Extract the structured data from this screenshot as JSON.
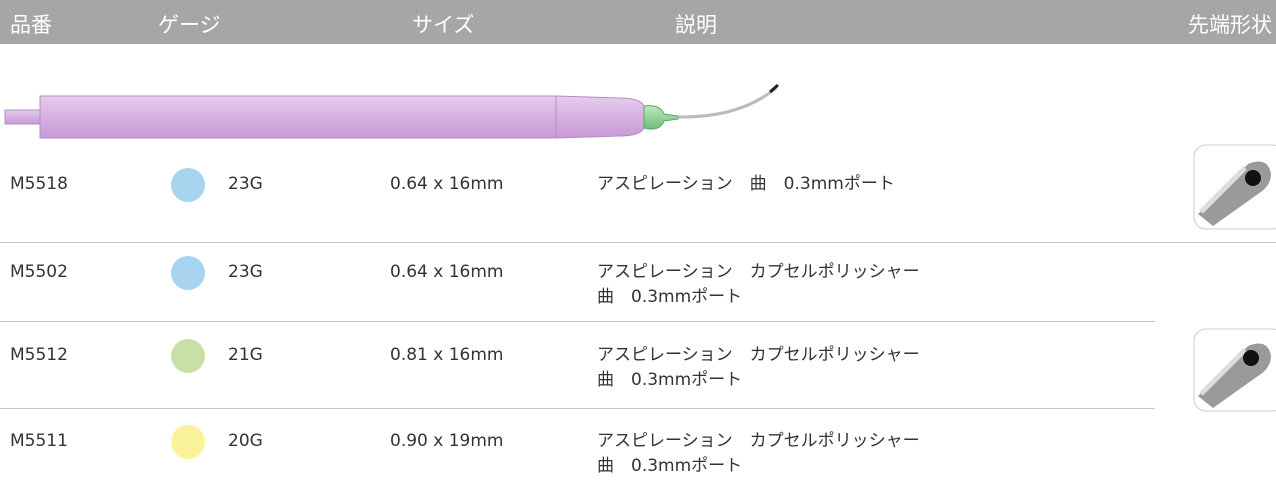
{
  "header": {
    "columns": [
      "品番",
      "ゲージ",
      "サイズ",
      "説明",
      "先端形状"
    ]
  },
  "table": {
    "rows": [
      {
        "code": "M5518",
        "gauge": "23G",
        "dot_color": "#a9d4f0",
        "size": "0.64 x 16mm",
        "description": [
          "アスピレーション　曲　0.3mmポート"
        ]
      },
      {
        "code": "M5502",
        "gauge": "23G",
        "dot_color": "#a9d4f0",
        "size": "0.64 x 16mm",
        "description": [
          "アスピレーション　カプセルポリッシャー",
          "曲　0.3mmポート"
        ]
      },
      {
        "code": "M5512",
        "gauge": "21G",
        "dot_color": "#c8e0a8",
        "size": "0.81 x 16mm",
        "description": [
          "アスピレーション　カプセルポリッシャー",
          "曲　0.3mmポート"
        ]
      },
      {
        "code": "M5511",
        "gauge": "20G",
        "dot_color": "#fbf39a",
        "size": "0.90 x 19mm",
        "description": [
          "アスピレーション　カプセルポリッシャー",
          "曲　0.3mmポート"
        ]
      }
    ]
  }
}
